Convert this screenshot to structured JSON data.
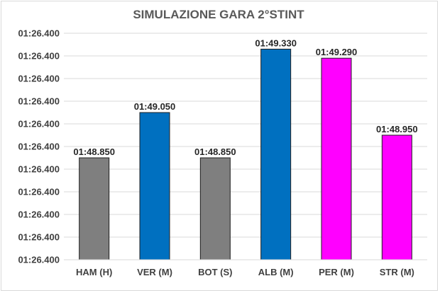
{
  "chart_data": {
    "type": "bar",
    "title": "SIMULAZIONE GARA 2°STINT",
    "xlabel": "",
    "ylabel": "",
    "categories": [
      "HAM (H)",
      "VER (M)",
      "BOT (S)",
      "ALB (M)",
      "PER (M)",
      "STR (M)"
    ],
    "values": [
      108.85,
      109.05,
      108.85,
      109.33,
      109.29,
      108.95
    ],
    "value_labels": [
      "01:48.850",
      "01:49.050",
      "01:48.850",
      "01:49.330",
      "01:49.290",
      "01:48.950"
    ],
    "colors": [
      "#7f7f7f",
      "#0070c0",
      "#7f7f7f",
      "#0070c0",
      "#ff00ff",
      "#ff00ff"
    ],
    "ylim": [
      108.4,
      109.4
    ],
    "yticks": [
      108.4,
      108.5,
      108.6,
      108.7,
      108.8,
      108.9,
      109.0,
      109.1,
      109.2,
      109.3,
      109.4
    ],
    "ytick_labels": [
      "01:26.400",
      "01:26.400",
      "01:26.400",
      "01:26.400",
      "01:26.400",
      "01:26.400",
      "01:26.400",
      "01:26.400",
      "01:26.400",
      "01:26.400",
      "01:26.400"
    ],
    "grid": true,
    "legend": "none"
  }
}
